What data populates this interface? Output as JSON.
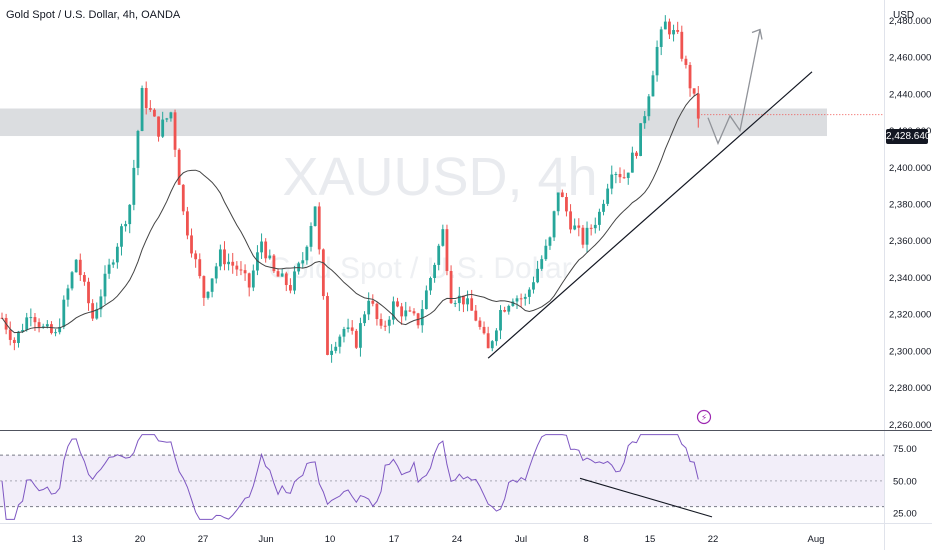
{
  "header": {
    "title": "Gold Spot / U.S. Dollar, 4h, OANDA"
  },
  "currency": "USD",
  "watermark": {
    "symbol": "XAUUSD, 4h",
    "name": "Gold Spot / U.S. Dollar"
  },
  "last_price": "2,428.640",
  "colors": {
    "up": "#26a69a",
    "down": "#ef5350",
    "ma": "#444444",
    "rsi": "#7e57c2",
    "zone": "#d5d7db"
  },
  "chart_data": {
    "type": "candlestick",
    "price_axis": {
      "ticks": [
        "2,480.000",
        "2,460.000",
        "2,440.000",
        "2,420.000",
        "2,400.000",
        "2,380.000",
        "2,360.000",
        "2,340.000",
        "2,320.000",
        "2,300.000",
        "2,280.000",
        "2,260.000"
      ],
      "range": [
        2258,
        2490
      ]
    },
    "time_axis": {
      "ticks": [
        "13",
        "20",
        "27",
        "Jun",
        "10",
        "17",
        "24",
        "Jul",
        "8",
        "15",
        "22",
        "Aug"
      ]
    },
    "zone": {
      "low": 2417,
      "high": 2432
    },
    "price_path": [
      [
        0,
        2318
      ],
      [
        3,
        2305
      ],
      [
        7,
        2322
      ],
      [
        10,
        2312
      ],
      [
        13,
        2308
      ],
      [
        18,
        2350
      ],
      [
        22,
        2318
      ],
      [
        26,
        2345
      ],
      [
        31,
        2380
      ],
      [
        34,
        2440
      ],
      [
        38,
        2420
      ],
      [
        41,
        2430
      ],
      [
        44,
        2375
      ],
      [
        49,
        2330
      ],
      [
        53,
        2352
      ],
      [
        57,
        2345
      ],
      [
        60,
        2335
      ],
      [
        63,
        2360
      ],
      [
        66,
        2342
      ],
      [
        70,
        2335
      ],
      [
        73,
        2350
      ],
      [
        76,
        2380
      ],
      [
        79,
        2300
      ],
      [
        83,
        2312
      ],
      [
        86,
        2305
      ],
      [
        89,
        2330
      ],
      [
        92,
        2310
      ],
      [
        95,
        2325
      ],
      [
        98,
        2320
      ],
      [
        101,
        2316
      ],
      [
        104,
        2340
      ],
      [
        107,
        2365
      ],
      [
        109,
        2330
      ],
      [
        112,
        2328
      ],
      [
        115,
        2318
      ],
      [
        118,
        2300
      ],
      [
        121,
        2322
      ],
      [
        124,
        2330
      ],
      [
        127,
        2328
      ],
      [
        130,
        2345
      ],
      [
        133,
        2360
      ],
      [
        135,
        2388
      ],
      [
        138,
        2370
      ],
      [
        141,
        2360
      ],
      [
        145,
        2375
      ],
      [
        148,
        2400
      ],
      [
        151,
        2395
      ],
      [
        154,
        2410
      ],
      [
        156,
        2430
      ],
      [
        159,
        2465
      ],
      [
        161,
        2478
      ],
      [
        164,
        2470
      ],
      [
        167,
        2445
      ],
      [
        169,
        2428
      ]
    ],
    "rsi_axis": {
      "ticks": [
        "75.00",
        "50.00",
        "25.00"
      ],
      "range": [
        18,
        88
      ]
    }
  }
}
